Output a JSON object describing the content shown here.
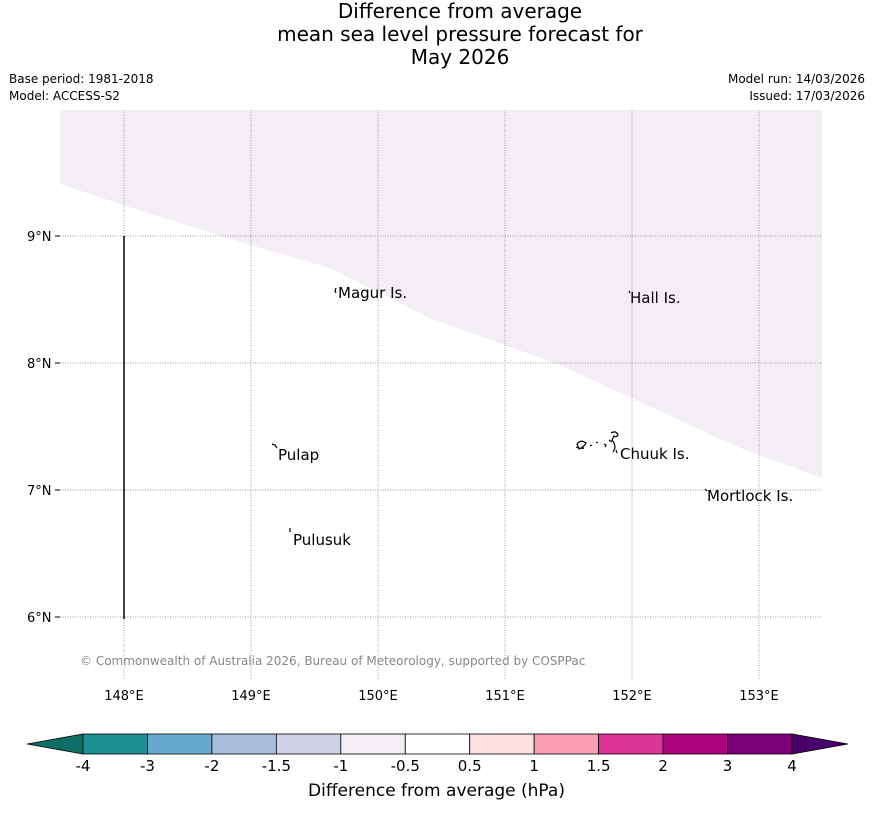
{
  "title": {
    "line1": "Difference from average",
    "line2": "mean sea level pressure forecast for",
    "line3": "May 2026"
  },
  "meta": {
    "base_period": "Base period: 1981-2018",
    "model": "Model: ACCESS-S2",
    "model_run": "Model run: 14/03/2026",
    "issued": "Issued: 17/03/2026"
  },
  "map": {
    "lon_ticks": [
      "148°E",
      "149°E",
      "150°E",
      "151°E",
      "152°E",
      "153°E"
    ],
    "lat_ticks": [
      "9°N",
      "8°N",
      "7°N",
      "6°N"
    ],
    "places": [
      "Magur Is.",
      "Hall Is.",
      "Pulap",
      "Chuuk Is.",
      "Mortlock Is.",
      "Pulusuk"
    ],
    "shaded_category": "-1 to -0.5",
    "copyright": "© Commonwealth of Australia 2026, Bureau of Meteorology, supported by COSPPac"
  },
  "colorbar": {
    "colors": [
      "#0b6e68",
      "#1a8f94",
      "#67a9cf",
      "#a6bddb",
      "#d0d1e6",
      "#f3eef6",
      "#ffffff",
      "#fde0dd",
      "#fa9fb5",
      "#dd3497",
      "#ae017e",
      "#7a0177",
      "#49006a"
    ],
    "ticks": [
      "-4",
      "-3",
      "-2",
      "-1.5",
      "-1",
      "-0.5",
      "0.5",
      "1",
      "1.5",
      "2",
      "3",
      "4"
    ],
    "label": "Difference from average (hPa)"
  }
}
